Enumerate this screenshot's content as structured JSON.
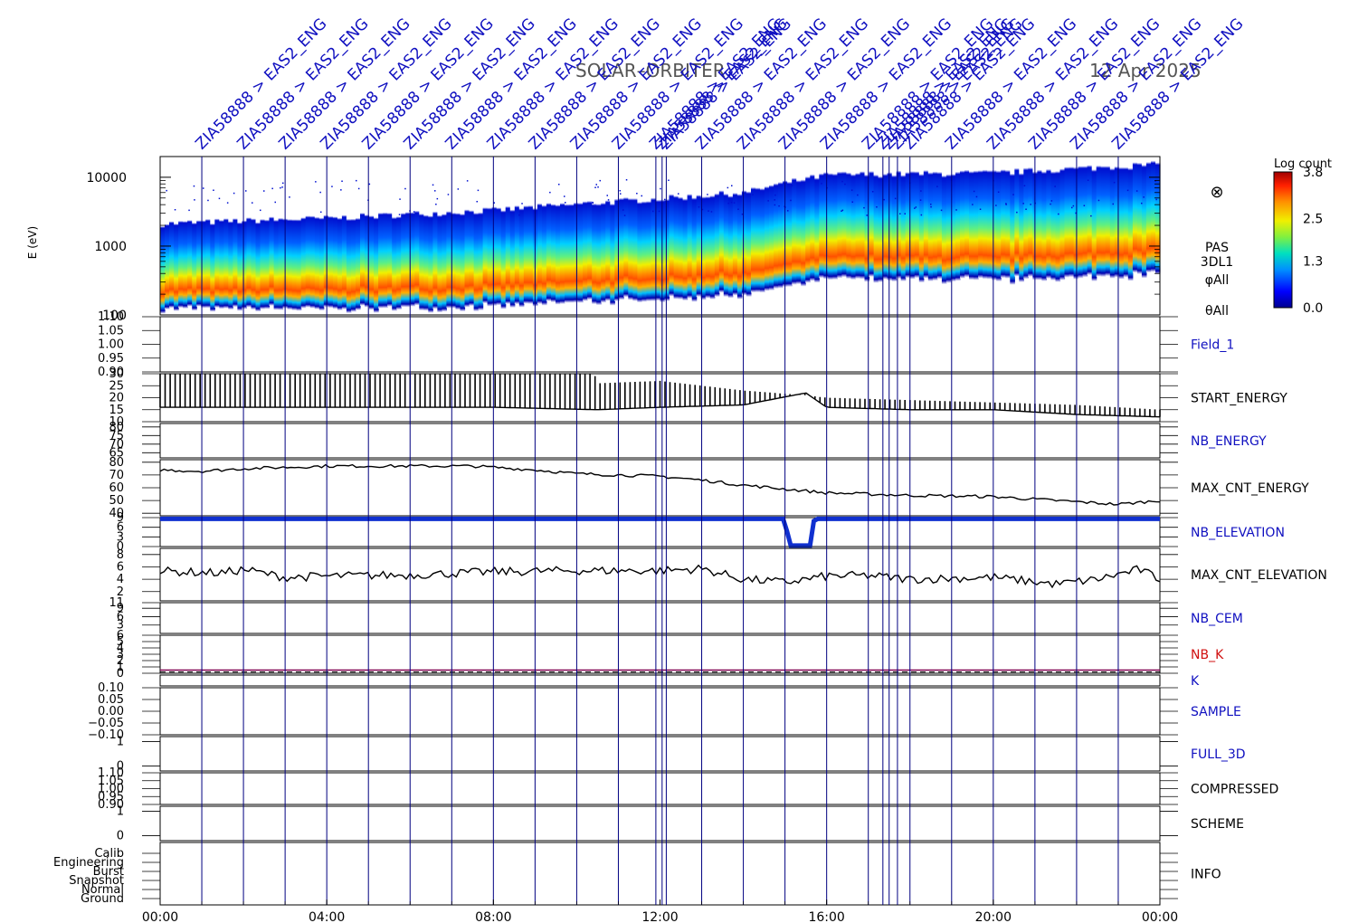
{
  "header": {
    "mission": "SOLAR–ORBITER",
    "date": "12 Apr 2025"
  },
  "vline_label": "ZIA58888 > EAS2_ENG",
  "colors": {
    "frame": "#000000",
    "vline": "#000080",
    "blue_label": "#1010c0",
    "red_label": "#d01010",
    "nb_elev_trace": "#1030d0",
    "k_line": "#800050"
  },
  "colorbar": {
    "title": "Log count",
    "ticks": [
      "3.8",
      "2.5",
      "1.3",
      "0.0"
    ],
    "min": 0.0,
    "max": 3.8
  },
  "spectrogram_labels": {
    "instrument": "PAS",
    "mode": "3DL1",
    "phi": "φAll",
    "theta": "θAll",
    "symbol": "⊗"
  },
  "chart_data": {
    "type": "line",
    "x_ticks": [
      "00:00",
      "04:00",
      "08:00",
      "12:00",
      "16:00",
      "20:00",
      "00:00"
    ],
    "x_range_hours": [
      0,
      24
    ],
    "event_marker_hours": [
      1.0,
      2.0,
      3.0,
      4.0,
      5.0,
      6.0,
      7.0,
      8.0,
      9.0,
      10.0,
      11.0,
      11.9,
      12.05,
      12.15,
      13.0,
      14.0,
      15.0,
      16.0,
      17.0,
      17.35,
      17.5,
      17.7,
      18.0,
      19.0,
      20.0,
      21.0,
      22.0,
      23.0
    ],
    "panels": [
      {
        "name": "E (eV)",
        "type": "heatmap",
        "ylabel": "E (eV)",
        "yticks": [
          "10000",
          "1000",
          "100"
        ],
        "ylim": [
          100,
          20000
        ],
        "log": true,
        "peak_energy_eV": [
          [
            0,
            310
          ],
          [
            4,
            300
          ],
          [
            8,
            330
          ],
          [
            12,
            420
          ],
          [
            14,
            480
          ],
          [
            16,
            820
          ],
          [
            20,
            780
          ],
          [
            24,
            950
          ]
        ]
      },
      {
        "name": "Field_1",
        "label_color": "blue",
        "yticks": [
          "1.10",
          "1.05",
          "1.00",
          "0.95",
          "0.90"
        ],
        "ylim": [
          0.9,
          1.1
        ],
        "trace": []
      },
      {
        "name": "START_ENERGY",
        "label_color": "black",
        "yticks": [
          "30",
          "25",
          "20",
          "15",
          "10"
        ],
        "ylim": [
          10,
          30
        ],
        "trace": [
          [
            0,
            16
          ],
          [
            4,
            16
          ],
          [
            8,
            16
          ],
          [
            10.5,
            15
          ],
          [
            12,
            16
          ],
          [
            14,
            17
          ],
          [
            15.5,
            22
          ],
          [
            16,
            16
          ],
          [
            18,
            15
          ],
          [
            20,
            15
          ],
          [
            22,
            13
          ],
          [
            24,
            12
          ]
        ],
        "upper_envelope": [
          [
            0,
            31
          ],
          [
            4,
            31
          ],
          [
            8,
            31
          ],
          [
            10.4,
            31
          ],
          [
            10.5,
            26
          ],
          [
            12,
            27
          ],
          [
            14,
            23
          ],
          [
            15.5,
            21
          ],
          [
            16,
            20
          ],
          [
            20,
            18
          ],
          [
            22,
            17
          ],
          [
            24,
            15
          ]
        ]
      },
      {
        "name": "NB_ENERGY",
        "label_color": "blue",
        "yticks": [
          "80",
          "75",
          "70",
          "65"
        ],
        "ylim": [
          62,
          82
        ],
        "trace": []
      },
      {
        "name": "MAX_CNT_ENERGY",
        "label_color": "black",
        "yticks": [
          "80",
          "70",
          "60",
          "50",
          "40"
        ],
        "ylim": [
          38,
          82
        ],
        "trace": [
          [
            0,
            74
          ],
          [
            1,
            73
          ],
          [
            2,
            75
          ],
          [
            4,
            77
          ],
          [
            6,
            77
          ],
          [
            7.5,
            77
          ],
          [
            9,
            74
          ],
          [
            10,
            71
          ],
          [
            12,
            69
          ],
          [
            13,
            66
          ],
          [
            14,
            62
          ],
          [
            15,
            59
          ],
          [
            16,
            56
          ],
          [
            18,
            54
          ],
          [
            20,
            53
          ],
          [
            21.5,
            50
          ],
          [
            23,
            47
          ],
          [
            24,
            50
          ]
        ]
      },
      {
        "name": "NB_ELEVATION",
        "label_color": "blue",
        "yticks": [
          "9",
          "6",
          "3",
          "0"
        ],
        "ylim": [
          0,
          9
        ],
        "trace": [
          [
            0,
            8.6
          ],
          [
            15.0,
            8.6
          ],
          [
            15.1,
            0.3
          ],
          [
            15.6,
            0.3
          ],
          [
            15.7,
            8.6
          ],
          [
            24,
            8.6
          ]
        ]
      },
      {
        "name": "MAX_CNT_ELEVATION",
        "label_color": "black",
        "yticks": [
          "8",
          "6",
          "4",
          "2"
        ],
        "ylim": [
          0.5,
          9
        ],
        "trace": [
          [
            0,
            5.3
          ],
          [
            1.5,
            5.0
          ],
          [
            2.0,
            5.6
          ],
          [
            3,
            4.3
          ],
          [
            4,
            4.5
          ],
          [
            6,
            4.7
          ],
          [
            8,
            5.2
          ],
          [
            10,
            5.4
          ],
          [
            12,
            5.4
          ],
          [
            13,
            5.7
          ],
          [
            14,
            4.0
          ],
          [
            15,
            3.5
          ],
          [
            16,
            4.5
          ],
          [
            17,
            4.6
          ],
          [
            18,
            4.0
          ],
          [
            20,
            4.3
          ],
          [
            21.5,
            3.2
          ],
          [
            22.5,
            4.0
          ],
          [
            23.5,
            5.6
          ],
          [
            24,
            4.0
          ]
        ]
      },
      {
        "name": "NB_CEM",
        "label_color": "blue",
        "yticks": [
          "11",
          "9",
          "6",
          "3"
        ],
        "ylim": [
          0,
          11
        ],
        "trace": []
      },
      {
        "name": "NB_K",
        "label_color": "red",
        "yticks": [
          "6",
          "5",
          "4",
          "3",
          "2",
          "1",
          "0"
        ],
        "ylim": [
          0,
          6
        ],
        "trace": [
          [
            0,
            0.5
          ],
          [
            24,
            0.5
          ]
        ]
      },
      {
        "name": "K",
        "label_color": "blue",
        "yticks": [],
        "ylim": [
          0,
          1
        ],
        "trace": []
      },
      {
        "name": "SAMPLE",
        "label_color": "blue",
        "yticks": [
          "0.10",
          "0.05",
          "0.00",
          "−0.05",
          "−0.10"
        ],
        "ylim": [
          -0.1,
          0.1
        ],
        "trace": []
      },
      {
        "name": "FULL_3D",
        "label_color": "blue",
        "yticks": [
          "1",
          "0"
        ],
        "ylim": [
          -0.2,
          1.2
        ],
        "trace": []
      },
      {
        "name": "COMPRESSED",
        "label_color": "black",
        "yticks": [
          "1.10",
          "1.05",
          "1.00",
          "0.95",
          "0.90"
        ],
        "ylim": [
          0.9,
          1.1
        ],
        "trace": []
      },
      {
        "name": "SCHEME",
        "label_color": "black",
        "yticks": [
          "1",
          "0"
        ],
        "ylim": [
          -0.2,
          1.2
        ],
        "trace": []
      },
      {
        "name": "INFO",
        "label_color": "black",
        "yticks": [
          "Calib",
          "Engineering",
          "Burst",
          "Snapshot",
          "Normal",
          "Ground"
        ],
        "ylim": [
          0,
          5
        ],
        "trace": []
      }
    ]
  }
}
